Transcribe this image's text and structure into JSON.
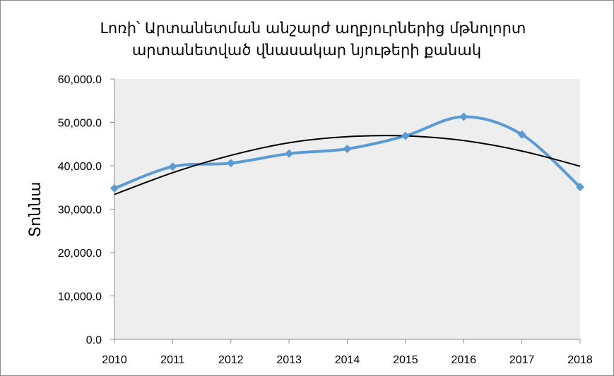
{
  "chart_data": {
    "type": "line",
    "title_lines": [
      "Լոռի՝ Արտանետման անշարժ աղբյուրներից մթնոլորտ",
      "արտանետված վնասակար նյութերի քանակ"
    ],
    "xlabel": "",
    "ylabel": "Տոննա",
    "x": [
      "2010",
      "2011",
      "2012",
      "2013",
      "2014",
      "2015",
      "2016",
      "2017",
      "2018"
    ],
    "ylim": [
      0,
      60000
    ],
    "y_ticks": [
      "0.0",
      "10,000.0",
      "20,000.0",
      "30,000.0",
      "40,000.0",
      "50,000.0",
      "60,000.0"
    ],
    "grid": false,
    "plot_background": "#eeeeee",
    "series": [
      {
        "color": "#5b9bd5",
        "marker": "diamond",
        "smooth": true,
        "values": [
          34800,
          39800,
          40600,
          42800,
          43900,
          46900,
          51300,
          47200,
          35100
        ]
      }
    ],
    "trendline": {
      "type": "polynomial",
      "color": "#000000",
      "values": [
        33400,
        38400,
        42400,
        45300,
        46700,
        46900,
        45800,
        43400,
        39900
      ]
    }
  }
}
